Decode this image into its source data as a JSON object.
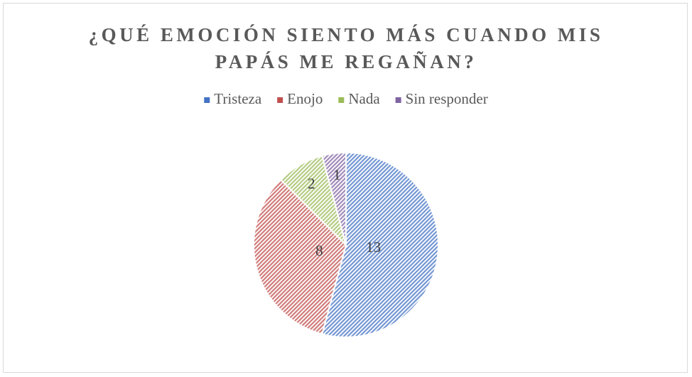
{
  "chart_data": {
    "type": "pie",
    "title": "¿QUÉ EMOCIÓN SIENTO MÁS CUANDO MIS PAPÁS ME REGAÑAN?",
    "categories": [
      "Tristeza",
      "Enojo",
      "Nada",
      "Sin responder"
    ],
    "values": [
      13,
      8,
      2,
      1
    ],
    "colors": [
      "#4472c4",
      "#c0504d",
      "#9bbb59",
      "#8064a2"
    ],
    "legend": "top"
  }
}
